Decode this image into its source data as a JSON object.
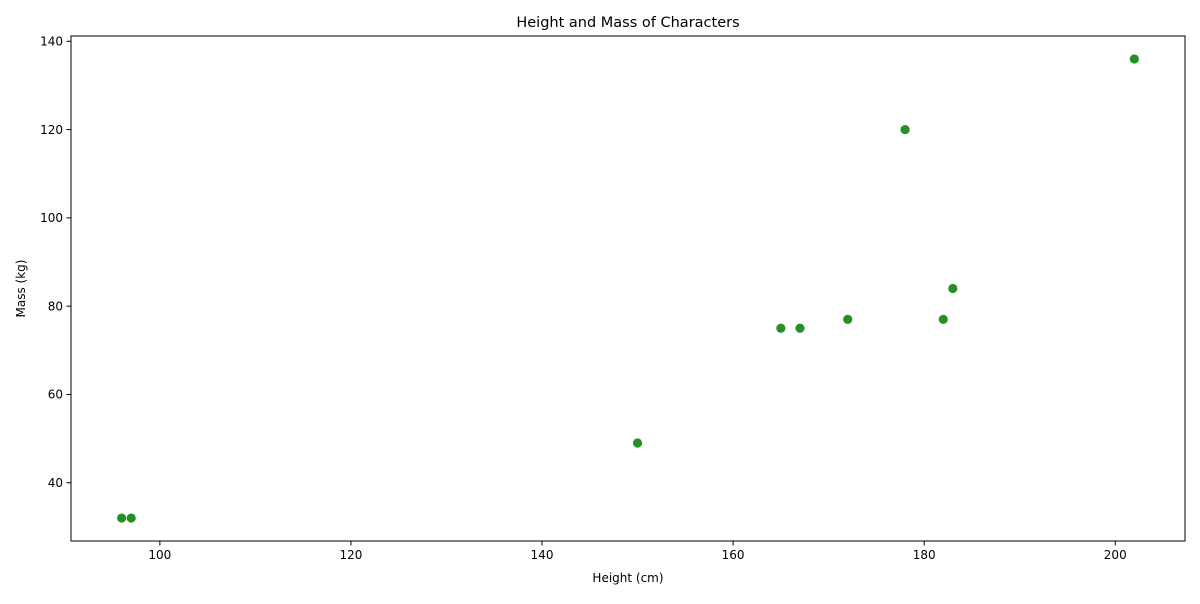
{
  "chart_data": {
    "type": "scatter",
    "title": "Height and Mass of Characters",
    "xlabel": "Height (cm)",
    "ylabel": "Mass (kg)",
    "xlim": [
      90.7,
      207.3
    ],
    "ylim": [
      26.8,
      141.2
    ],
    "x_ticks": [
      100,
      120,
      140,
      160,
      180,
      200
    ],
    "y_ticks": [
      40,
      60,
      80,
      100,
      120,
      140
    ],
    "grid": false,
    "legend": "none",
    "marker_color": "#1a8a1a",
    "points": [
      {
        "x": 172,
        "y": 77
      },
      {
        "x": 167,
        "y": 75
      },
      {
        "x": 96,
        "y": 32
      },
      {
        "x": 202,
        "y": 136
      },
      {
        "x": 150,
        "y": 49
      },
      {
        "x": 178,
        "y": 120
      },
      {
        "x": 165,
        "y": 75
      },
      {
        "x": 97,
        "y": 32
      },
      {
        "x": 183,
        "y": 84
      },
      {
        "x": 182,
        "y": 77
      }
    ]
  }
}
